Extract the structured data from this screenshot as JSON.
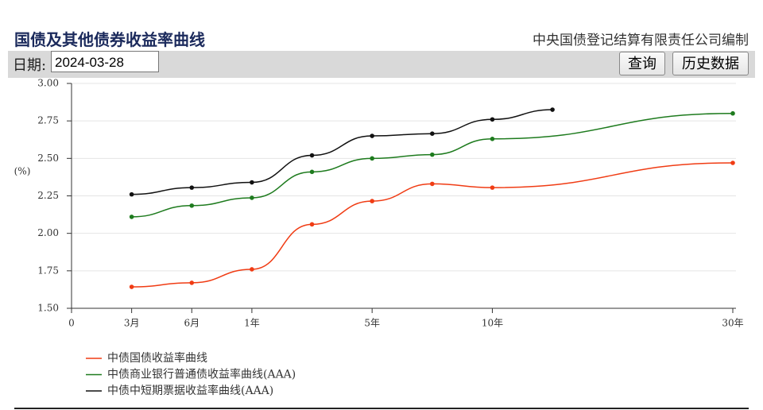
{
  "header": {
    "title": "国债及其他债券收益率曲线",
    "publisher": "中央国债登记结算有限责任公司编制"
  },
  "toolbar": {
    "date_label": "日期:",
    "date_value": "2024-03-28",
    "query_button": "查询",
    "history_button": "历史数据"
  },
  "chart_data": {
    "type": "line",
    "y_label": "(%)",
    "xlim": [
      0,
      11
    ],
    "xticks": [
      {
        "value": 0,
        "label": "0"
      },
      {
        "value": 1,
        "label": "3月"
      },
      {
        "value": 2,
        "label": "6月"
      },
      {
        "value": 3,
        "label": "1年"
      },
      {
        "value": 5,
        "label": "5年"
      },
      {
        "value": 7,
        "label": "10年"
      },
      {
        "value": 11,
        "label": "30年"
      }
    ],
    "ylim": [
      1.5,
      3.0
    ],
    "yticks": [
      {
        "value": 1.5,
        "label": "1.50"
      },
      {
        "value": 1.75,
        "label": "1.75"
      },
      {
        "value": 2.0,
        "label": "2.00"
      },
      {
        "value": 2.25,
        "label": "2.25"
      },
      {
        "value": 2.5,
        "label": "2.50"
      },
      {
        "value": 2.75,
        "label": "2.75"
      },
      {
        "value": 3.0,
        "label": "3.00"
      }
    ],
    "grid": true,
    "series": [
      {
        "name": "中债国债收益率曲线",
        "color": "#f03c14",
        "x": [
          1,
          2,
          3,
          4,
          5,
          6,
          7,
          11
        ],
        "values": [
          1.643,
          1.67,
          1.76,
          2.06,
          2.215,
          2.33,
          2.305,
          2.47
        ]
      },
      {
        "name": "中债商业银行普通债收益率曲线(AAA)",
        "color": "#1e7b1e",
        "x": [
          1,
          2,
          3,
          4,
          5,
          6,
          7,
          11
        ],
        "values": [
          2.11,
          2.185,
          2.237,
          2.41,
          2.5,
          2.525,
          2.63,
          2.8
        ]
      },
      {
        "name": "中债中短期票据收益率曲线(AAA)",
        "color": "#111111",
        "x": [
          1,
          2,
          3,
          4,
          5,
          6,
          7,
          8
        ],
        "values": [
          2.26,
          2.305,
          2.34,
          2.52,
          2.65,
          2.665,
          2.76,
          2.825
        ]
      }
    ]
  }
}
